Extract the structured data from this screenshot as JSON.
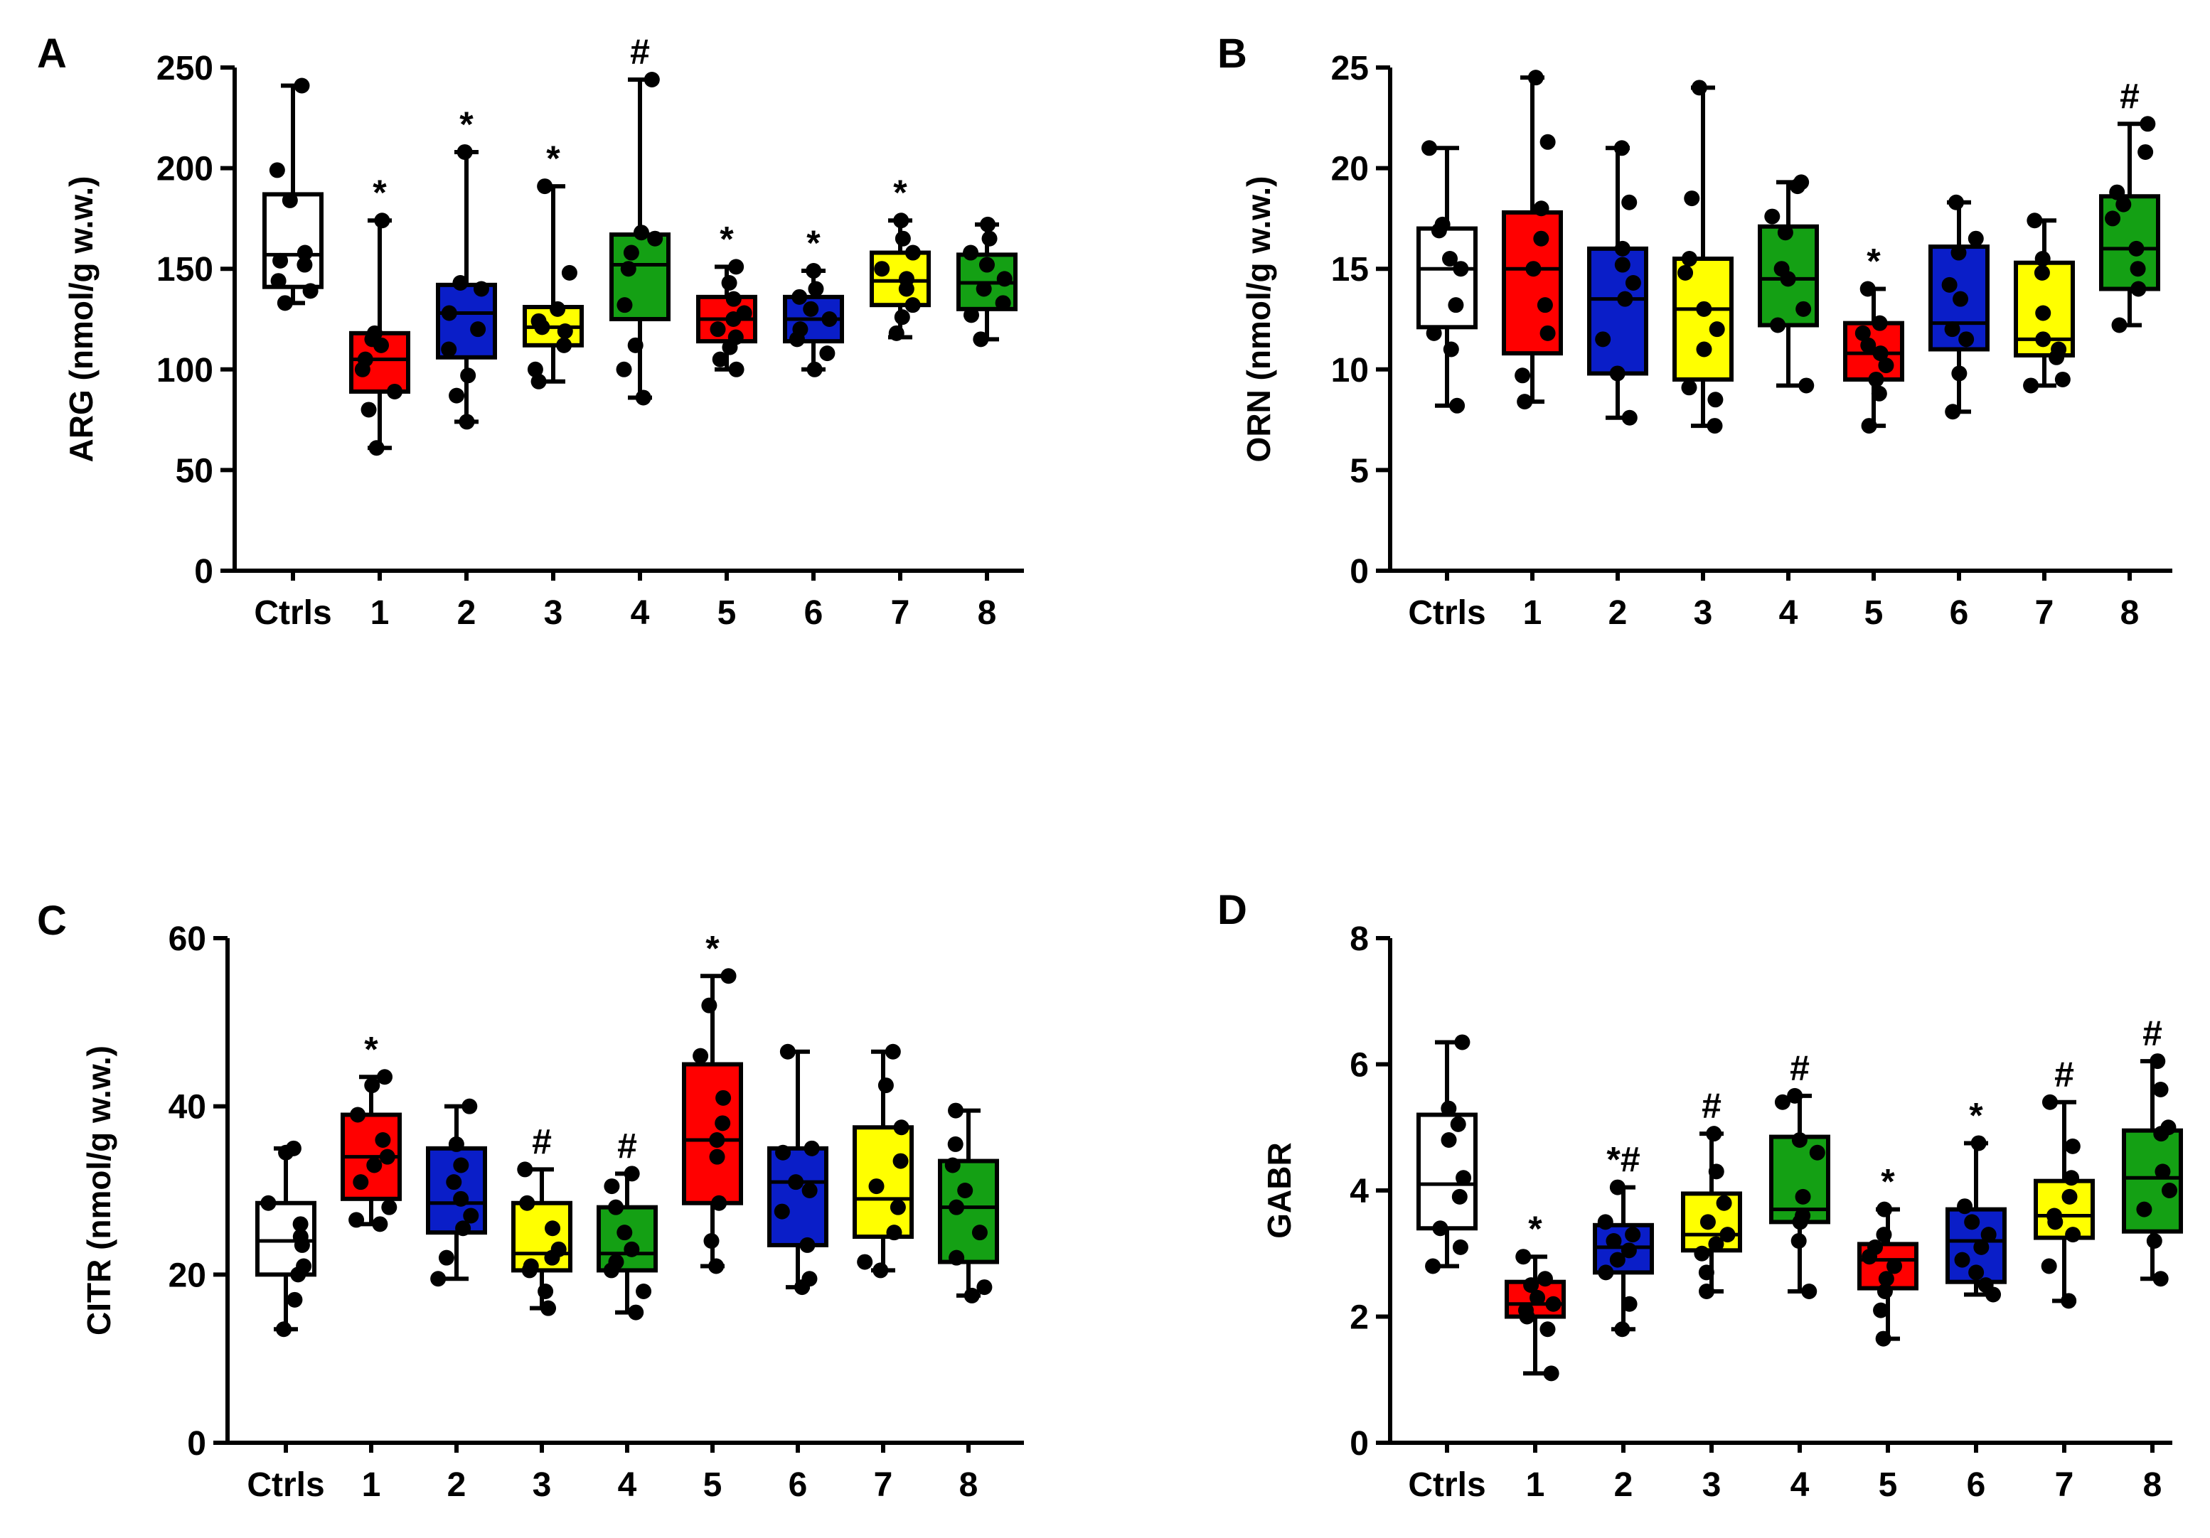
{
  "group_colors": {
    "Ctrls": "#ffffff",
    "1": "#ff0000",
    "2": "#0a1ec8",
    "3": "#ffff00",
    "4": "#14a014",
    "5": "#ff0000",
    "6": "#0a1ec8",
    "7": "#ffff00",
    "8": "#14a014"
  },
  "chart_data": [
    {
      "panel": "A",
      "type": "box",
      "ylabel": "ARG (nmol/g w.w.)",
      "ylim": [
        0,
        250
      ],
      "yticks": [
        0,
        50,
        100,
        150,
        200,
        250
      ],
      "categories": [
        "Ctrls",
        "1",
        "2",
        "3",
        "4",
        "5",
        "6",
        "7",
        "8"
      ],
      "boxes": [
        {
          "min": 133,
          "q1": 141,
          "median": 157,
          "q3": 187,
          "max": 241,
          "sig": "",
          "points": [
            241,
            199,
            184,
            158,
            154,
            152,
            144,
            139,
            133
          ]
        },
        {
          "min": 61,
          "q1": 89,
          "median": 105,
          "q3": 118,
          "max": 174,
          "sig": "*",
          "points": [
            174,
            118,
            115,
            112,
            105,
            100,
            89,
            80,
            61
          ]
        },
        {
          "min": 74,
          "q1": 106,
          "median": 128,
          "q3": 142,
          "max": 208,
          "sig": "*",
          "points": [
            208,
            143,
            140,
            128,
            120,
            110,
            97,
            87,
            74
          ]
        },
        {
          "min": 94,
          "q1": 112,
          "median": 121,
          "q3": 131,
          "max": 191,
          "sig": "*",
          "points": [
            191,
            148,
            130,
            124,
            121,
            119,
            112,
            100,
            94
          ]
        },
        {
          "min": 86,
          "q1": 125,
          "median": 152,
          "q3": 167,
          "max": 244,
          "sig": "#",
          "points": [
            244,
            168,
            165,
            158,
            150,
            132,
            112,
            100,
            86
          ]
        },
        {
          "min": 100,
          "q1": 114,
          "median": 125,
          "q3": 136,
          "max": 151,
          "sig": "*",
          "points": [
            151,
            143,
            135,
            128,
            125,
            120,
            116,
            111,
            105,
            100
          ]
        },
        {
          "min": 100,
          "q1": 114,
          "median": 125,
          "q3": 136,
          "max": 149,
          "sig": "*",
          "points": [
            149,
            140,
            136,
            130,
            125,
            120,
            115,
            108,
            100
          ]
        },
        {
          "min": 116,
          "q1": 132,
          "median": 144,
          "q3": 158,
          "max": 174,
          "sig": "*",
          "points": [
            174,
            165,
            158,
            150,
            145,
            140,
            132,
            126,
            118
          ]
        },
        {
          "min": 115,
          "q1": 130,
          "median": 143,
          "q3": 157,
          "max": 172,
          "sig": "",
          "points": [
            172,
            165,
            158,
            152,
            145,
            140,
            133,
            127,
            115
          ]
        }
      ]
    },
    {
      "panel": "B",
      "type": "box",
      "ylabel": "ORN (nmol/g w.w.)",
      "ylim": [
        0,
        25
      ],
      "yticks": [
        0,
        5,
        10,
        15,
        20,
        25
      ],
      "categories": [
        "Ctrls",
        "1",
        "2",
        "3",
        "4",
        "5",
        "6",
        "7",
        "8"
      ],
      "boxes": [
        {
          "min": 8.2,
          "q1": 12.1,
          "median": 15,
          "q3": 17,
          "max": 21,
          "sig": "",
          "points": [
            21,
            17.2,
            16.9,
            15.5,
            15,
            13.2,
            11.8,
            11,
            8.2
          ]
        },
        {
          "min": 8.4,
          "q1": 10.8,
          "median": 15,
          "q3": 17.8,
          "max": 24.5,
          "sig": "",
          "points": [
            24.5,
            21.3,
            18,
            16.5,
            15,
            13.2,
            11.8,
            9.7,
            8.4
          ]
        },
        {
          "min": 7.6,
          "q1": 9.8,
          "median": 13.5,
          "q3": 16,
          "max": 21,
          "sig": "",
          "points": [
            21,
            18.3,
            16,
            15.2,
            14.3,
            13.5,
            11.5,
            9.8,
            7.6
          ]
        },
        {
          "min": 7.2,
          "q1": 9.5,
          "median": 13,
          "q3": 15.5,
          "max": 24,
          "sig": "",
          "points": [
            24,
            18.5,
            15.5,
            14.8,
            13,
            12,
            11,
            9.1,
            8.5,
            7.2
          ]
        },
        {
          "min": 9.2,
          "q1": 12.2,
          "median": 14.5,
          "q3": 17.1,
          "max": 19.3,
          "sig": "",
          "points": [
            19.3,
            19.1,
            17.6,
            16.8,
            15,
            14.5,
            13,
            12.2,
            9.2
          ]
        },
        {
          "min": 7.2,
          "q1": 9.5,
          "median": 10.8,
          "q3": 12.3,
          "max": 14,
          "sig": "*",
          "points": [
            14,
            12.3,
            11.8,
            11.2,
            10.8,
            10.2,
            9.5,
            8.8,
            7.2
          ]
        },
        {
          "min": 7.9,
          "q1": 11,
          "median": 12.3,
          "q3": 16.1,
          "max": 18.3,
          "sig": "",
          "points": [
            18.3,
            16.5,
            15.8,
            14.2,
            13.5,
            12,
            11.5,
            9.8,
            7.9
          ]
        },
        {
          "min": 9.2,
          "q1": 10.7,
          "median": 11.5,
          "q3": 15.3,
          "max": 17.4,
          "sig": "",
          "points": [
            17.4,
            15.5,
            14.8,
            12.8,
            11.5,
            11,
            10.6,
            9.5,
            9.2
          ]
        },
        {
          "min": 12.2,
          "q1": 14,
          "median": 16,
          "q3": 18.6,
          "max": 22.2,
          "sig": "#",
          "points": [
            22.2,
            20.8,
            18.8,
            18.2,
            17.5,
            16,
            15,
            14,
            12.2
          ]
        }
      ]
    },
    {
      "panel": "C",
      "type": "box",
      "ylabel": "CITR (nmol/g w.w.)",
      "ylim": [
        0,
        60
      ],
      "yticks": [
        0,
        20,
        40,
        60
      ],
      "categories": [
        "Ctrls",
        "1",
        "2",
        "3",
        "4",
        "5",
        "6",
        "7",
        "8"
      ],
      "boxes": [
        {
          "min": 13.5,
          "q1": 20,
          "median": 24,
          "q3": 28.5,
          "max": 35,
          "sig": "",
          "points": [
            35,
            34.5,
            28.5,
            26,
            24.5,
            23.5,
            21,
            20,
            17,
            13.5
          ]
        },
        {
          "min": 26,
          "q1": 29,
          "median": 34,
          "q3": 39,
          "max": 43.5,
          "sig": "*",
          "points": [
            43.5,
            42.5,
            39,
            36,
            34,
            33,
            31,
            28,
            26.5,
            26
          ]
        },
        {
          "min": 19.5,
          "q1": 25,
          "median": 28.5,
          "q3": 35,
          "max": 40,
          "sig": "",
          "points": [
            40,
            35.5,
            33,
            31,
            29,
            27,
            25.5,
            22,
            19.5
          ]
        },
        {
          "min": 16,
          "q1": 20.5,
          "median": 22.5,
          "q3": 28.5,
          "max": 32.5,
          "sig": "#",
          "points": [
            32.5,
            28.5,
            25.5,
            23,
            22,
            21,
            20.5,
            18,
            16
          ]
        },
        {
          "min": 15.5,
          "q1": 20.5,
          "median": 22.5,
          "q3": 28,
          "max": 32,
          "sig": "#",
          "points": [
            32,
            30.5,
            28,
            25,
            23,
            21.5,
            20.5,
            18,
            15.5
          ]
        },
        {
          "min": 21,
          "q1": 28.5,
          "median": 36,
          "q3": 45,
          "max": 55.5,
          "sig": "*",
          "points": [
            55.5,
            52,
            46,
            41,
            38,
            36,
            34,
            28.5,
            24,
            21
          ]
        },
        {
          "min": 18.5,
          "q1": 23.5,
          "median": 31,
          "q3": 35,
          "max": 46.5,
          "sig": "",
          "points": [
            46.5,
            35,
            34.5,
            31,
            30,
            27.5,
            23.5,
            19.5,
            18.5
          ]
        },
        {
          "min": 20.5,
          "q1": 24.5,
          "median": 29,
          "q3": 37.5,
          "max": 46.5,
          "sig": "",
          "points": [
            46.5,
            42.5,
            37.5,
            33.5,
            30.5,
            28,
            25,
            21.5,
            20.5
          ]
        },
        {
          "min": 17.5,
          "q1": 21.5,
          "median": 28,
          "q3": 33.5,
          "max": 39.5,
          "sig": "",
          "points": [
            39.5,
            35.5,
            33,
            30,
            28,
            25,
            22,
            18.5,
            17.5
          ]
        }
      ]
    },
    {
      "panel": "D",
      "type": "box",
      "ylabel": "GABR",
      "ylim": [
        0,
        8
      ],
      "yticks": [
        0,
        2,
        4,
        6,
        8
      ],
      "categories": [
        "Ctrls",
        "1",
        "2",
        "3",
        "4",
        "5",
        "6",
        "7",
        "8"
      ],
      "boxes": [
        {
          "min": 2.8,
          "q1": 3.4,
          "median": 4.1,
          "q3": 5.2,
          "max": 6.35,
          "sig": "",
          "points": [
            6.35,
            5.3,
            5.05,
            4.8,
            4.2,
            3.9,
            3.4,
            3.1,
            2.8
          ]
        },
        {
          "min": 1.1,
          "q1": 2,
          "median": 2.2,
          "q3": 2.55,
          "max": 2.95,
          "sig": "*",
          "points": [
            2.95,
            2.6,
            2.5,
            2.3,
            2.2,
            2.1,
            2,
            1.8,
            1.1
          ]
        },
        {
          "min": 1.8,
          "q1": 2.7,
          "median": 3.1,
          "q3": 3.45,
          "max": 4.05,
          "sig": "*#",
          "points": [
            4.05,
            3.5,
            3.3,
            3.2,
            3.05,
            2.9,
            2.7,
            2.2,
            1.8
          ]
        },
        {
          "min": 2.4,
          "q1": 3.05,
          "median": 3.3,
          "q3": 3.95,
          "max": 4.9,
          "sig": "#",
          "points": [
            4.9,
            4.3,
            3.8,
            3.5,
            3.3,
            3.15,
            3,
            2.7,
            2.4
          ]
        },
        {
          "min": 2.4,
          "q1": 3.5,
          "median": 3.7,
          "q3": 4.85,
          "max": 5.5,
          "sig": "#",
          "points": [
            5.5,
            5.4,
            4.8,
            4.6,
            3.9,
            3.6,
            3.5,
            3.2,
            2.4
          ]
        },
        {
          "min": 1.65,
          "q1": 2.45,
          "median": 2.9,
          "q3": 3.15,
          "max": 3.7,
          "sig": "*",
          "points": [
            3.7,
            3.3,
            3.1,
            2.95,
            2.8,
            2.6,
            2.4,
            2.1,
            1.65
          ]
        },
        {
          "min": 2.35,
          "q1": 2.55,
          "median": 3.2,
          "q3": 3.7,
          "max": 4.75,
          "sig": "*",
          "points": [
            4.75,
            3.75,
            3.5,
            3.3,
            3.1,
            2.9,
            2.7,
            2.5,
            2.35
          ]
        },
        {
          "min": 2.25,
          "q1": 3.25,
          "median": 3.6,
          "q3": 4.15,
          "max": 5.4,
          "sig": "#",
          "points": [
            5.4,
            4.7,
            4.2,
            3.9,
            3.6,
            3.5,
            3.3,
            2.8,
            2.25
          ]
        },
        {
          "min": 2.6,
          "q1": 3.35,
          "median": 4.2,
          "q3": 4.95,
          "max": 6.05,
          "sig": "#",
          "points": [
            6.05,
            5.6,
            5,
            4.9,
            4.3,
            4,
            3.7,
            3.2,
            2.6
          ]
        }
      ]
    }
  ]
}
